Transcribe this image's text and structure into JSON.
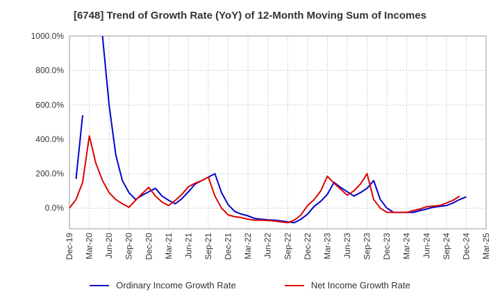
{
  "chart_data": {
    "type": "line",
    "title": "[6748]  Trend of Growth Rate (YoY) of 12-Month Moving Sum of Incomes",
    "xlabel": "",
    "ylabel": "",
    "ylim": [
      -120,
      1000
    ],
    "y_ticks": [
      "1000.0%",
      "800.0%",
      "600.0%",
      "400.0%",
      "200.0%",
      "0.0%"
    ],
    "y_tick_values": [
      1000,
      800,
      600,
      400,
      200,
      0
    ],
    "x_ticks": [
      "Dec-19",
      "Mar-20",
      "Jun-20",
      "Sep-20",
      "Dec-20",
      "Mar-21",
      "Jun-21",
      "Sep-21",
      "Dec-21",
      "Mar-22",
      "Jun-22",
      "Sep-22",
      "Dec-22",
      "Mar-23",
      "Jun-23",
      "Sep-23",
      "Dec-23",
      "Mar-24",
      "Jun-24",
      "Sep-24",
      "Dec-24",
      "Mar-25"
    ],
    "x_tick_index": [
      0,
      3,
      6,
      9,
      12,
      15,
      18,
      21,
      24,
      27,
      30,
      33,
      36,
      39,
      42,
      45,
      48,
      51,
      54,
      57,
      60,
      63
    ],
    "grid": true,
    "legend_position": "bottom",
    "series": [
      {
        "name": "Ordinary Income Growth Rate",
        "color": "#0000cc",
        "x_index": [
          0,
          1,
          2,
          3,
          4,
          5,
          6,
          7,
          8,
          9,
          10,
          11,
          12,
          13,
          14,
          15,
          16,
          17,
          18,
          19,
          20,
          21,
          22,
          23,
          24,
          25,
          26,
          27,
          28,
          29,
          30,
          31,
          32,
          33,
          34,
          35,
          36,
          37,
          38,
          39,
          40,
          41,
          42,
          43,
          44,
          45,
          46,
          47,
          48,
          49,
          50,
          51,
          52,
          53,
          54,
          55,
          56,
          57,
          58,
          59,
          60
        ],
        "values": [
          null,
          170,
          540,
          null,
          null,
          1000,
          600,
          310,
          160,
          90,
          50,
          75,
          95,
          115,
          70,
          45,
          25,
          55,
          95,
          140,
          160,
          180,
          200,
          90,
          20,
          -20,
          -35,
          -45,
          -60,
          -65,
          -68,
          -70,
          -75,
          -80,
          -85,
          -65,
          -35,
          10,
          40,
          80,
          150,
          120,
          95,
          70,
          90,
          115,
          160,
          50,
          0,
          -25,
          -25,
          -25,
          -25,
          -15,
          -5,
          5,
          10,
          15,
          30,
          50,
          65
        ],
        "note_first_point": 55
      },
      {
        "name": "Net Income Growth Rate",
        "color": "#dd0000",
        "x_index": [
          0,
          1,
          2,
          3,
          4,
          5,
          6,
          7,
          8,
          9,
          10,
          11,
          12,
          13,
          14,
          15,
          16,
          17,
          18,
          19,
          20,
          21,
          22,
          23,
          24,
          25,
          26,
          27,
          28,
          29,
          30,
          31,
          32,
          33,
          34,
          35,
          36,
          37,
          38,
          39,
          40,
          41,
          42,
          43,
          44,
          45,
          46,
          47,
          48,
          49,
          50,
          51,
          52,
          53,
          54,
          55,
          56,
          57,
          58,
          59,
          60
        ],
        "values": [
          0,
          50,
          150,
          420,
          260,
          160,
          90,
          50,
          25,
          5,
          45,
          85,
          120,
          70,
          35,
          15,
          45,
          80,
          125,
          145,
          160,
          180,
          70,
          0,
          -40,
          -50,
          -55,
          -65,
          -70,
          -70,
          -72,
          -75,
          -80,
          -85,
          -70,
          -40,
          15,
          50,
          100,
          185,
          145,
          110,
          75,
          100,
          140,
          200,
          50,
          0,
          -25,
          -25,
          -25,
          -25,
          -15,
          -5,
          8,
          12,
          15,
          30,
          45,
          70,
          null
        ]
      }
    ]
  },
  "legend": {
    "ordinary_label": "Ordinary Income Growth Rate",
    "net_label": "Net Income Growth Rate"
  }
}
